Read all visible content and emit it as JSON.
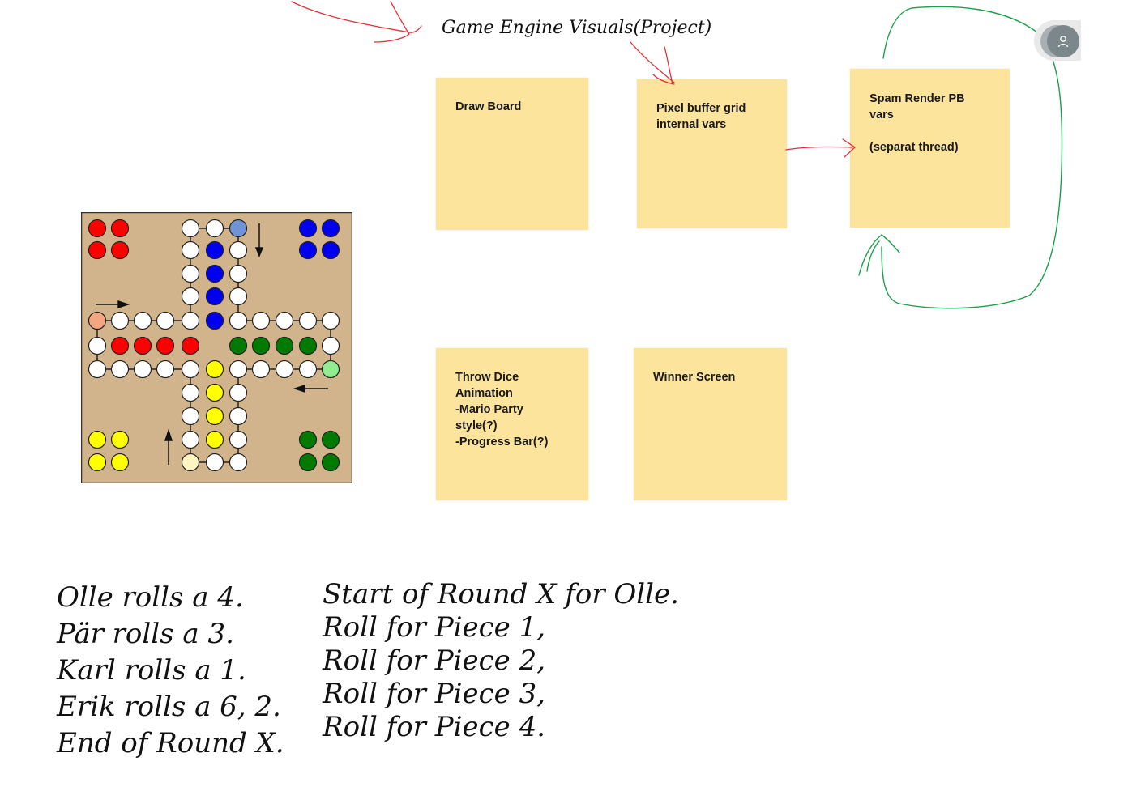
{
  "whiteboard": {
    "title": "Game Engine Visuals(Project)",
    "notes": [
      {
        "id": "draw-board",
        "text": "Draw Board"
      },
      {
        "id": "pixel-buffer",
        "text": "Pixel buffer grid\ninternal vars"
      },
      {
        "id": "spam-render",
        "text": "Spam Render PB\nvars\n\n(separat thread)"
      },
      {
        "id": "throw-dice",
        "text": "Throw Dice\nAnimation\n-Mario Party\nstyle(?)\n-Progress Bar(?)"
      },
      {
        "id": "winner-screen",
        "text": "Winner Screen"
      }
    ],
    "left_notes": [
      "Olle rolls a 4.",
      "Pär rolls a 3.",
      "Karl rolls a 1.",
      "Erik rolls a 6, 2.",
      "End of Round X."
    ],
    "right_notes": [
      "Start of Round X for Olle.",
      "Roll for Piece 1,",
      "Roll for Piece 2,",
      "Roll for Piece 3,",
      "Roll for Piece 4."
    ],
    "avatar_icon": "user-icon"
  },
  "colors": {
    "sticky": "#fde49c",
    "board": "#d2b48c",
    "red": "#ff0000",
    "blue": "#0000ee",
    "green": "#007a00",
    "yellow": "#ffff00",
    "ink_red": "#e0303a",
    "ink_green": "#1aa04a"
  }
}
